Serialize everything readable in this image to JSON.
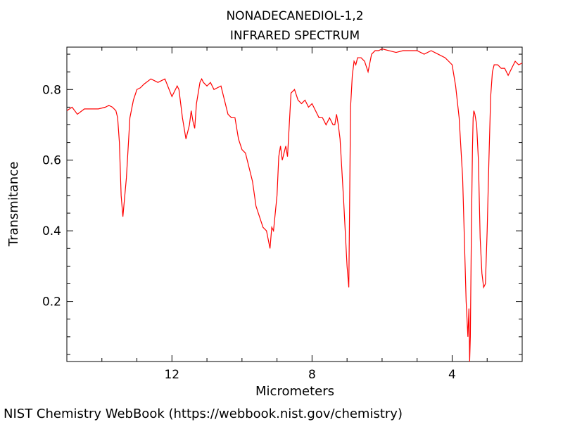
{
  "chart_data": {
    "type": "line",
    "title": "NONADECANEDIOL-1,2",
    "subtitle": "INFRARED SPECTRUM",
    "xlabel": "Micrometers",
    "ylabel": "Transmitance",
    "xlim": [
      15.0,
      2.0
    ],
    "ylim": [
      0.03,
      0.92
    ],
    "x_ticks": [
      12,
      8,
      4
    ],
    "y_ticks": [
      0.2,
      0.4,
      0.6,
      0.8
    ],
    "grid": false,
    "series": [
      {
        "color": "#ff0000",
        "x": [
          15.0,
          14.85,
          14.7,
          14.5,
          14.3,
          14.1,
          13.9,
          13.8,
          13.7,
          13.6,
          13.55,
          13.5,
          13.45,
          13.4,
          13.3,
          13.2,
          13.1,
          13.0,
          12.9,
          12.8,
          12.6,
          12.4,
          12.2,
          12.0,
          11.9,
          11.85,
          11.8,
          11.7,
          11.6,
          11.5,
          11.45,
          11.4,
          11.35,
          11.3,
          11.2,
          11.15,
          11.1,
          11.0,
          10.9,
          10.8,
          10.6,
          10.4,
          10.3,
          10.2,
          10.1,
          10.0,
          9.9,
          9.8,
          9.7,
          9.6,
          9.5,
          9.4,
          9.3,
          9.2,
          9.15,
          9.1,
          9.05,
          9.0,
          8.95,
          8.9,
          8.85,
          8.8,
          8.75,
          8.7,
          8.65,
          8.6,
          8.5,
          8.4,
          8.3,
          8.2,
          8.1,
          8.0,
          7.9,
          7.8,
          7.7,
          7.6,
          7.5,
          7.4,
          7.35,
          7.3,
          7.25,
          7.2,
          7.1,
          7.0,
          6.95,
          6.9,
          6.85,
          6.8,
          6.75,
          6.7,
          6.6,
          6.5,
          6.4,
          6.3,
          6.2,
          6.1,
          6.0,
          5.8,
          5.6,
          5.4,
          5.2,
          5.0,
          4.8,
          4.6,
          4.4,
          4.2,
          4.0,
          3.9,
          3.8,
          3.7,
          3.6,
          3.55,
          3.52,
          3.5,
          3.48,
          3.45,
          3.42,
          3.4,
          3.38,
          3.35,
          3.3,
          3.25,
          3.2,
          3.15,
          3.1,
          3.05,
          3.0,
          2.95,
          2.9,
          2.85,
          2.8,
          2.7,
          2.6,
          2.5,
          2.4,
          2.3,
          2.2,
          2.1,
          2.0
        ],
        "y": [
          0.74,
          0.75,
          0.73,
          0.745,
          0.745,
          0.745,
          0.75,
          0.755,
          0.75,
          0.74,
          0.72,
          0.65,
          0.5,
          0.44,
          0.55,
          0.72,
          0.77,
          0.8,
          0.805,
          0.815,
          0.83,
          0.82,
          0.83,
          0.78,
          0.8,
          0.81,
          0.8,
          0.72,
          0.66,
          0.7,
          0.74,
          0.71,
          0.69,
          0.76,
          0.82,
          0.83,
          0.82,
          0.81,
          0.82,
          0.8,
          0.81,
          0.73,
          0.72,
          0.72,
          0.66,
          0.63,
          0.62,
          0.58,
          0.54,
          0.47,
          0.44,
          0.41,
          0.4,
          0.35,
          0.41,
          0.4,
          0.45,
          0.5,
          0.61,
          0.64,
          0.6,
          0.62,
          0.64,
          0.61,
          0.7,
          0.79,
          0.8,
          0.77,
          0.76,
          0.77,
          0.75,
          0.76,
          0.74,
          0.72,
          0.72,
          0.7,
          0.72,
          0.7,
          0.7,
          0.73,
          0.7,
          0.66,
          0.49,
          0.3,
          0.24,
          0.75,
          0.84,
          0.88,
          0.87,
          0.89,
          0.89,
          0.88,
          0.85,
          0.9,
          0.91,
          0.91,
          0.915,
          0.91,
          0.905,
          0.91,
          0.91,
          0.91,
          0.9,
          0.91,
          0.9,
          0.89,
          0.87,
          0.81,
          0.72,
          0.55,
          0.2,
          0.1,
          0.18,
          0.03,
          0.1,
          0.4,
          0.63,
          0.72,
          0.74,
          0.73,
          0.7,
          0.6,
          0.38,
          0.28,
          0.24,
          0.25,
          0.4,
          0.6,
          0.78,
          0.85,
          0.87,
          0.87,
          0.86,
          0.86,
          0.84,
          0.86,
          0.88,
          0.87,
          0.875
        ]
      }
    ]
  },
  "footer": "NIST Chemistry WebBook (https://webbook.nist.gov/chemistry)"
}
